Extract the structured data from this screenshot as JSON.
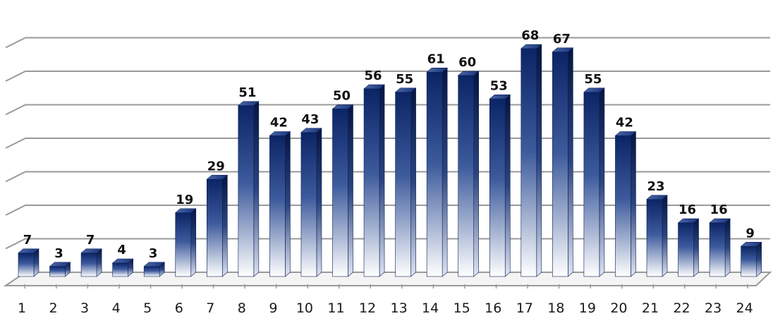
{
  "chart_data": {
    "type": "bar",
    "categories": [
      "1",
      "2",
      "3",
      "4",
      "5",
      "6",
      "7",
      "8",
      "9",
      "10",
      "11",
      "12",
      "13",
      "14",
      "15",
      "16",
      "17",
      "18",
      "19",
      "20",
      "21",
      "22",
      "23",
      "24"
    ],
    "values": [
      7,
      3,
      7,
      4,
      3,
      19,
      29,
      51,
      42,
      43,
      50,
      56,
      55,
      61,
      60,
      53,
      68,
      67,
      55,
      42,
      23,
      16,
      16,
      9
    ],
    "ylim": [
      0,
      70
    ],
    "grid": true,
    "bar_style": "3d-gradient",
    "colors": {
      "bar_top": "#0b2466",
      "bar_bottom": "#ffffff",
      "bar_side": "#0a1f55",
      "grid": "#999999"
    }
  }
}
